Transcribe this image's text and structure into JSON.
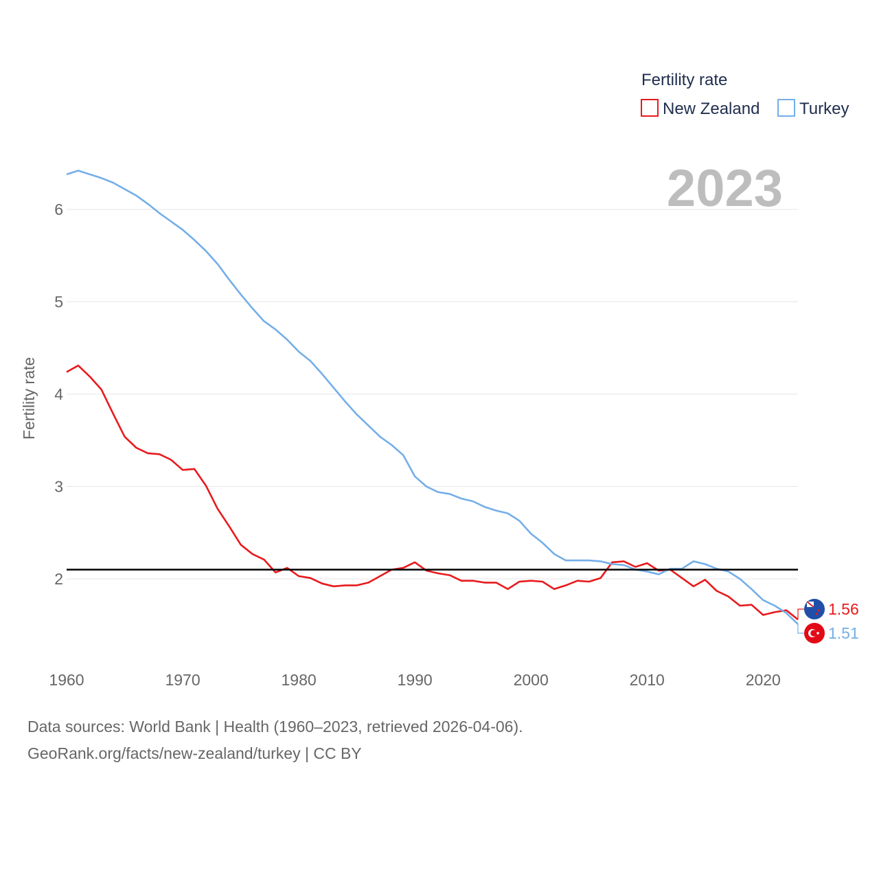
{
  "chart_data": {
    "type": "line",
    "title": "Fertility rate",
    "ylabel": "Fertility rate",
    "xlabel": "",
    "year_label": "2023",
    "xlim": [
      1960,
      2023
    ],
    "ylim": [
      1.2,
      6.6
    ],
    "xticks": [
      1960,
      1970,
      1980,
      1990,
      2000,
      2010,
      2020
    ],
    "yticks": [
      2,
      3,
      4,
      5,
      6
    ],
    "reference_line": 2.1,
    "legend": {
      "title": "Fertility rate",
      "position": "top-right"
    },
    "x": [
      1960,
      1961,
      1962,
      1963,
      1964,
      1965,
      1966,
      1967,
      1968,
      1969,
      1970,
      1971,
      1972,
      1973,
      1974,
      1975,
      1976,
      1977,
      1978,
      1979,
      1980,
      1981,
      1982,
      1983,
      1984,
      1985,
      1986,
      1987,
      1988,
      1989,
      1990,
      1991,
      1992,
      1993,
      1994,
      1995,
      1996,
      1997,
      1998,
      1999,
      2000,
      2001,
      2002,
      2003,
      2004,
      2005,
      2006,
      2007,
      2008,
      2009,
      2010,
      2011,
      2012,
      2013,
      2014,
      2015,
      2016,
      2017,
      2018,
      2019,
      2020,
      2021,
      2022,
      2023
    ],
    "series": [
      {
        "name": "New Zealand",
        "color": "#e8191c",
        "end_label": "1.56",
        "values": [
          4.24,
          4.31,
          4.19,
          4.05,
          3.79,
          3.54,
          3.42,
          3.36,
          3.35,
          3.29,
          3.18,
          3.19,
          3.01,
          2.76,
          2.57,
          2.37,
          2.27,
          2.21,
          2.07,
          2.12,
          2.03,
          2.01,
          1.95,
          1.92,
          1.93,
          1.93,
          1.96,
          2.03,
          2.1,
          2.12,
          2.18,
          2.09,
          2.06,
          2.04,
          1.98,
          1.98,
          1.96,
          1.96,
          1.89,
          1.97,
          1.98,
          1.97,
          1.89,
          1.93,
          1.98,
          1.97,
          2.01,
          2.18,
          2.19,
          2.13,
          2.17,
          2.09,
          2.1,
          2.01,
          1.92,
          1.99,
          1.87,
          1.81,
          1.71,
          1.72,
          1.61,
          1.64,
          1.66,
          1.56
        ]
      },
      {
        "name": "Turkey",
        "color": "#74aee8",
        "end_label": "1.51",
        "values": [
          6.38,
          6.42,
          6.38,
          6.34,
          6.29,
          6.22,
          6.15,
          6.06,
          5.96,
          5.87,
          5.78,
          5.67,
          5.55,
          5.41,
          5.24,
          5.08,
          4.93,
          4.79,
          4.7,
          4.59,
          4.46,
          4.36,
          4.22,
          4.07,
          3.92,
          3.78,
          3.66,
          3.54,
          3.45,
          3.34,
          3.11,
          3.0,
          2.94,
          2.92,
          2.87,
          2.84,
          2.78,
          2.74,
          2.71,
          2.63,
          2.49,
          2.39,
          2.27,
          2.2,
          2.2,
          2.2,
          2.19,
          2.16,
          2.15,
          2.1,
          2.08,
          2.05,
          2.11,
          2.11,
          2.19,
          2.16,
          2.11,
          2.08,
          2.0,
          1.89,
          1.77,
          1.71,
          1.63,
          1.51
        ]
      }
    ]
  },
  "footer": {
    "line1": "Data sources: World Bank | Health (1960–2023, retrieved 2026-04-06).",
    "line2": "GeoRank.org/facts/new-zealand/turkey | CC BY"
  }
}
